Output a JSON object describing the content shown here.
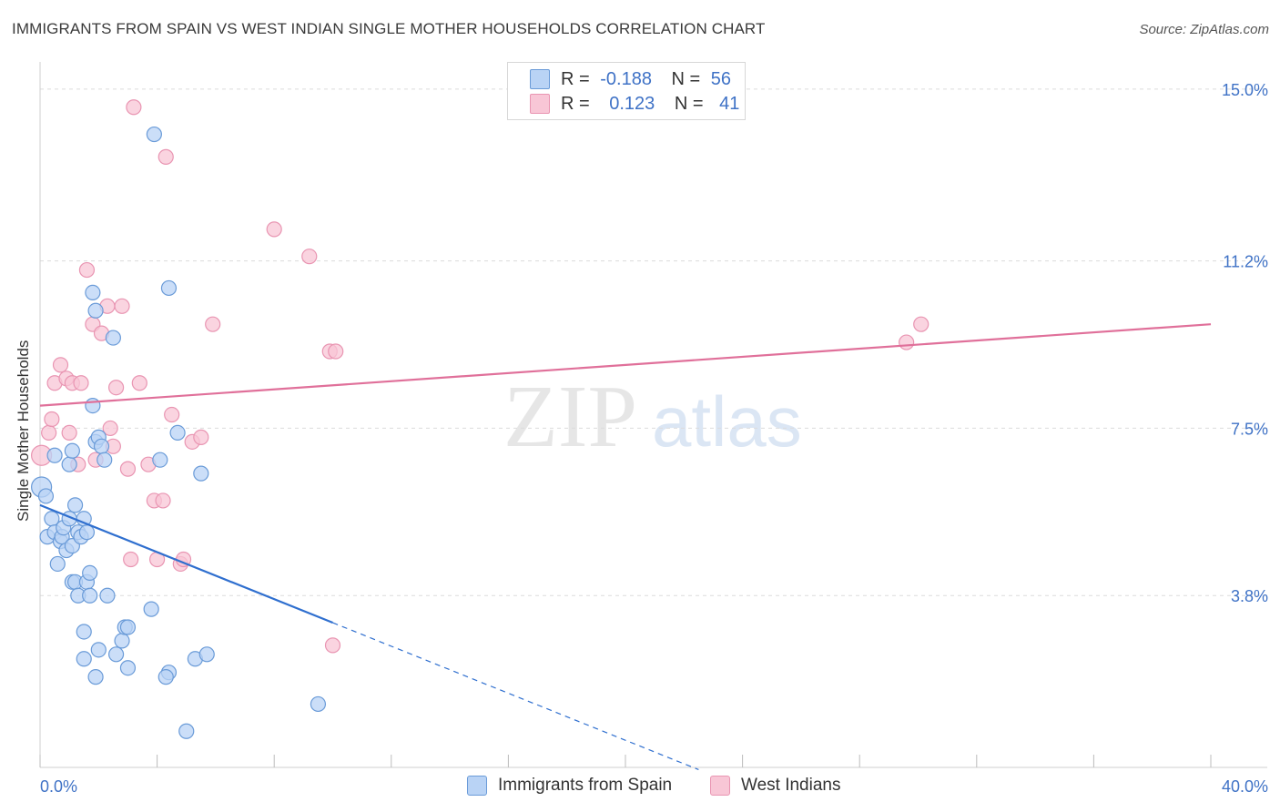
{
  "title": "IMMIGRANTS FROM SPAIN VS WEST INDIAN SINGLE MOTHER HOUSEHOLDS CORRELATION CHART",
  "source": "Source: ZipAtlas.com",
  "watermark": {
    "zip": "ZIP",
    "atlas": "atlas"
  },
  "colors": {
    "blue_fill": "#b9d3f5",
    "blue_stroke": "#6a9bd8",
    "blue_line": "#2f6fcf",
    "pink_fill": "#f8c6d6",
    "pink_stroke": "#e995b2",
    "pink_line": "#e0709a",
    "axis_label": "#3f72c6",
    "grid": "#dcdcdc"
  },
  "legend": {
    "rows": [
      {
        "r_label": "R =",
        "r_value": "-0.188",
        "n_label": "N =",
        "n_value": "56"
      },
      {
        "r_label": "R =",
        "r_value": "0.123",
        "n_label": "N =",
        "n_value": "41"
      }
    ]
  },
  "bottom_legend": {
    "series1": "Immigrants from Spain",
    "series2": "West Indians"
  },
  "chart_data": {
    "type": "scatter",
    "title": "IMMIGRANTS FROM SPAIN VS WEST INDIAN SINGLE MOTHER HOUSEHOLDS CORRELATION CHART",
    "xlabel": "",
    "ylabel": "Single Mother Households",
    "xlim": [
      0,
      40
    ],
    "ylim": [
      0,
      15.4
    ],
    "x_tick_labels": [
      "0.0%",
      "40.0%"
    ],
    "y_ticks": [
      3.8,
      7.5,
      11.2,
      15.0
    ],
    "y_tick_labels": [
      "3.8%",
      "7.5%",
      "11.2%",
      "15.0%"
    ],
    "grid": true,
    "series": [
      {
        "name": "Immigrants from Spain",
        "color": "#6a9bd8",
        "trend": {
          "x_start": 0,
          "y_start": 5.8,
          "x_end": 10,
          "y_end": 3.2,
          "dashed_to_x": 22.5
        },
        "points": [
          [
            0.05,
            6.2
          ],
          [
            0.2,
            6.0
          ],
          [
            0.25,
            5.1
          ],
          [
            0.4,
            5.5
          ],
          [
            0.5,
            5.2
          ],
          [
            0.6,
            4.5
          ],
          [
            0.7,
            5.0
          ],
          [
            0.75,
            5.1
          ],
          [
            0.8,
            5.3
          ],
          [
            0.9,
            4.8
          ],
          [
            1.0,
            5.5
          ],
          [
            1.1,
            4.9
          ],
          [
            1.2,
            5.8
          ],
          [
            1.3,
            5.2
          ],
          [
            1.0,
            6.7
          ],
          [
            0.5,
            6.9
          ],
          [
            1.1,
            7.0
          ],
          [
            1.1,
            4.1
          ],
          [
            1.2,
            4.1
          ],
          [
            1.3,
            3.8
          ],
          [
            1.5,
            5.5
          ],
          [
            1.4,
            5.1
          ],
          [
            1.6,
            5.2
          ],
          [
            1.6,
            4.1
          ],
          [
            1.7,
            4.3
          ],
          [
            1.7,
            3.8
          ],
          [
            1.8,
            10.5
          ],
          [
            1.9,
            10.1
          ],
          [
            2.5,
            9.5
          ],
          [
            1.8,
            8.0
          ],
          [
            1.9,
            7.2
          ],
          [
            2.0,
            7.3
          ],
          [
            2.1,
            7.1
          ],
          [
            2.2,
            6.8
          ],
          [
            2.3,
            3.8
          ],
          [
            2.0,
            2.6
          ],
          [
            1.5,
            3.0
          ],
          [
            1.5,
            2.4
          ],
          [
            1.9,
            2.0
          ],
          [
            2.6,
            2.5
          ],
          [
            2.8,
            2.8
          ],
          [
            2.9,
            3.1
          ],
          [
            3.0,
            2.2
          ],
          [
            3.0,
            3.1
          ],
          [
            3.8,
            3.5
          ],
          [
            3.9,
            14.0
          ],
          [
            4.4,
            10.6
          ],
          [
            4.1,
            6.8
          ],
          [
            4.4,
            2.1
          ],
          [
            4.3,
            2.0
          ],
          [
            4.7,
            7.4
          ],
          [
            5.5,
            6.5
          ],
          [
            5.3,
            2.4
          ],
          [
            5.7,
            2.5
          ],
          [
            5.0,
            0.8
          ],
          [
            9.5,
            1.4
          ]
        ]
      },
      {
        "name": "West Indians",
        "color": "#e995b2",
        "trend": {
          "x_start": 0,
          "y_start": 8.0,
          "x_end": 40,
          "y_end": 9.8
        },
        "points": [
          [
            0.05,
            6.9
          ],
          [
            0.3,
            7.4
          ],
          [
            0.4,
            7.7
          ],
          [
            0.5,
            8.5
          ],
          [
            0.7,
            8.9
          ],
          [
            0.9,
            8.6
          ],
          [
            1.0,
            7.4
          ],
          [
            1.1,
            8.5
          ],
          [
            1.3,
            6.7
          ],
          [
            1.4,
            8.5
          ],
          [
            1.6,
            11.0
          ],
          [
            1.8,
            9.8
          ],
          [
            1.9,
            6.8
          ],
          [
            2.1,
            9.6
          ],
          [
            2.3,
            10.2
          ],
          [
            2.4,
            7.5
          ],
          [
            2.5,
            7.1
          ],
          [
            2.6,
            8.4
          ],
          [
            2.8,
            10.2
          ],
          [
            3.0,
            6.6
          ],
          [
            3.1,
            4.6
          ],
          [
            3.4,
            8.5
          ],
          [
            3.7,
            6.7
          ],
          [
            3.9,
            5.9
          ],
          [
            4.0,
            4.6
          ],
          [
            4.2,
            5.9
          ],
          [
            4.3,
            13.5
          ],
          [
            4.5,
            7.8
          ],
          [
            4.8,
            4.5
          ],
          [
            4.9,
            4.6
          ],
          [
            5.2,
            7.2
          ],
          [
            5.5,
            7.3
          ],
          [
            5.9,
            9.8
          ],
          [
            8.0,
            11.9
          ],
          [
            9.2,
            11.3
          ],
          [
            9.9,
            9.2
          ],
          [
            10.1,
            9.2
          ],
          [
            10.0,
            2.7
          ],
          [
            3.2,
            14.6
          ],
          [
            29.6,
            9.4
          ],
          [
            30.1,
            9.8
          ]
        ]
      }
    ]
  }
}
